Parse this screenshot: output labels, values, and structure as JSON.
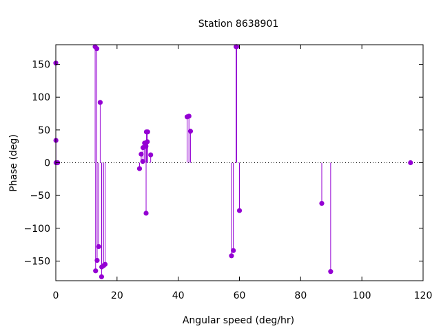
{
  "chart_data": {
    "type": "scatter",
    "title": "Station 8638901",
    "xlabel": "Angular speed (deg/hr)",
    "ylabel": "Phase (deg)",
    "xlim": [
      0,
      120
    ],
    "ylim": [
      -180,
      180
    ],
    "xticks": [
      0,
      20,
      40,
      60,
      80,
      100,
      120
    ],
    "yticks": [
      -150,
      -100,
      -50,
      0,
      50,
      100,
      150
    ],
    "grid": false,
    "legend": "none",
    "mark_style": "impulses-with-points",
    "zero_line": "dotted",
    "series": [
      {
        "color": "#9400d3",
        "points": [
          {
            "x": 0.0,
            "y": 152
          },
          {
            "x": 0.04,
            "y": 34
          },
          {
            "x": 0.08,
            "y": 0
          },
          {
            "x": 0.5,
            "y": 0
          },
          {
            "x": 0.6,
            "y": 0
          },
          {
            "x": 12.85,
            "y": 177
          },
          {
            "x": 13.4,
            "y": 174
          },
          {
            "x": 13.0,
            "y": -165
          },
          {
            "x": 13.5,
            "y": -149
          },
          {
            "x": 14.0,
            "y": -128
          },
          {
            "x": 14.5,
            "y": 92
          },
          {
            "x": 14.95,
            "y": -174
          },
          {
            "x": 15.0,
            "y": -159
          },
          {
            "x": 15.6,
            "y": -157
          },
          {
            "x": 16.1,
            "y": -155
          },
          {
            "x": 27.35,
            "y": -9
          },
          {
            "x": 27.9,
            "y": 13
          },
          {
            "x": 28.4,
            "y": 2
          },
          {
            "x": 28.5,
            "y": 23
          },
          {
            "x": 29.0,
            "y": 30
          },
          {
            "x": 29.45,
            "y": 25
          },
          {
            "x": 29.5,
            "y": -77
          },
          {
            "x": 29.6,
            "y": 47
          },
          {
            "x": 29.9,
            "y": 32
          },
          {
            "x": 30.0,
            "y": 47
          },
          {
            "x": 31.0,
            "y": 12
          },
          {
            "x": 42.9,
            "y": 70
          },
          {
            "x": 43.5,
            "y": 71
          },
          {
            "x": 44.0,
            "y": 48
          },
          {
            "x": 57.4,
            "y": -142
          },
          {
            "x": 58.0,
            "y": -134
          },
          {
            "x": 58.9,
            "y": 177
          },
          {
            "x": 59.1,
            "y": 177
          },
          {
            "x": 60.0,
            "y": -73
          },
          {
            "x": 86.9,
            "y": -62
          },
          {
            "x": 89.8,
            "y": -166
          },
          {
            "x": 115.9,
            "y": 0
          }
        ]
      }
    ]
  }
}
